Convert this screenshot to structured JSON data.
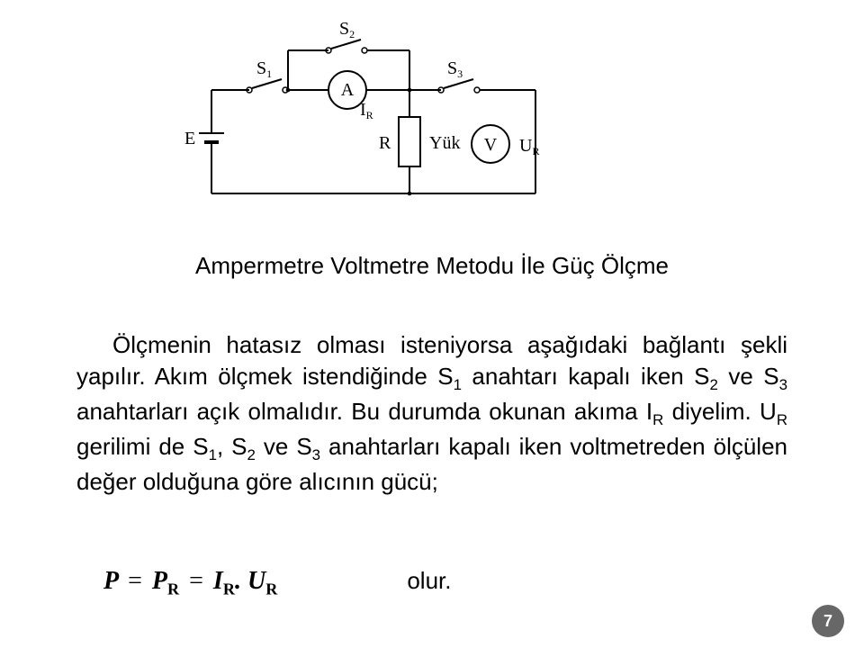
{
  "circuit": {
    "stroke": "#000000",
    "stroke_width": 2,
    "labels": {
      "S1": {
        "main": "S",
        "sub": "1"
      },
      "S2": {
        "main": "S",
        "sub": "2"
      },
      "S3": {
        "main": "S",
        "sub": "3"
      },
      "A": "A",
      "IR": {
        "main": "I",
        "sub": "R"
      },
      "E": "E",
      "R": "R",
      "Yuk": "Yük",
      "V": "V",
      "UR": {
        "main": "U",
        "sub": "R"
      }
    }
  },
  "caption": "Ampermetre Voltmetre Metodu İle Güç Ölçme",
  "body": {
    "pieces": [
      "Ölçmenin hatasız olması isteniyorsa aşağıdaki bağlantı şekli yapılır. Akım ölçmek istendiğinde S",
      "1",
      " anahtarı kapalı iken S",
      "2",
      " ve S",
      "3",
      " anahtarları açık olmalıdır. Bu durumda okunan akıma I",
      "R",
      " diyelim. U",
      "R",
      " gerilimi de S",
      "1",
      ", S",
      "2",
      " ve S",
      "3",
      " anahtarları kapalı iken voltmetreden ölçülen değer olduğuna göre alıcının gücü;"
    ]
  },
  "equation": {
    "P": "P",
    "eq": "=",
    "PR_main": "P",
    "PR_sub": "R",
    "IR_main": "I",
    "IR_sub": "R",
    "dot": ".",
    "UR_main": "U",
    "UR_sub": "R",
    "result_text": "olur."
  },
  "page_number": "7",
  "page_number_bg": "#676767"
}
